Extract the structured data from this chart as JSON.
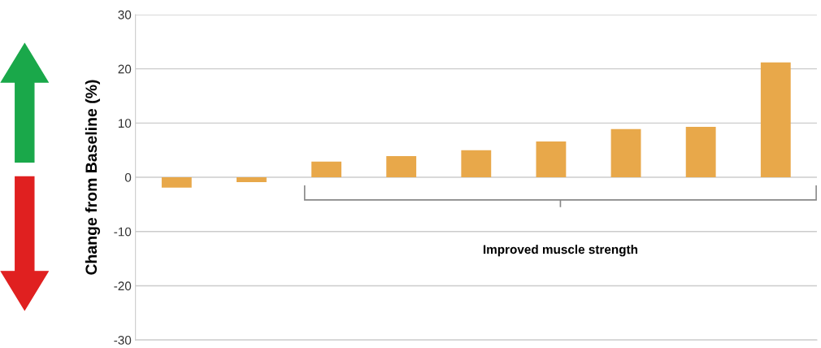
{
  "chart_data": {
    "type": "bar",
    "ylabel": "Change from Baseline (%)",
    "categories": [
      null,
      null,
      null,
      null,
      null,
      null,
      null,
      null,
      null
    ],
    "values": [
      -1.9,
      -0.9,
      2.9,
      3.9,
      5.0,
      6.6,
      8.9,
      9.3,
      21.2
    ],
    "color": "#e8a84a",
    "ylim": [
      -30,
      30
    ],
    "yticks": [
      -30,
      -20,
      -10,
      0,
      10,
      20,
      30
    ],
    "grid": "y",
    "annotations": [
      "Improved muscle strength"
    ]
  }
}
